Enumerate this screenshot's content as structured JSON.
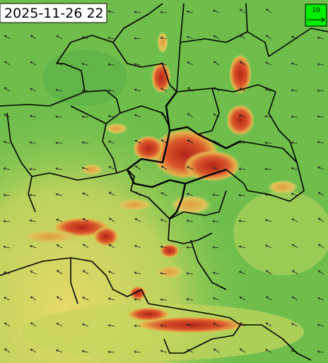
{
  "map": {
    "timestamp": "2025-11-26 22",
    "wind_scale": {
      "label": "10"
    }
  }
}
